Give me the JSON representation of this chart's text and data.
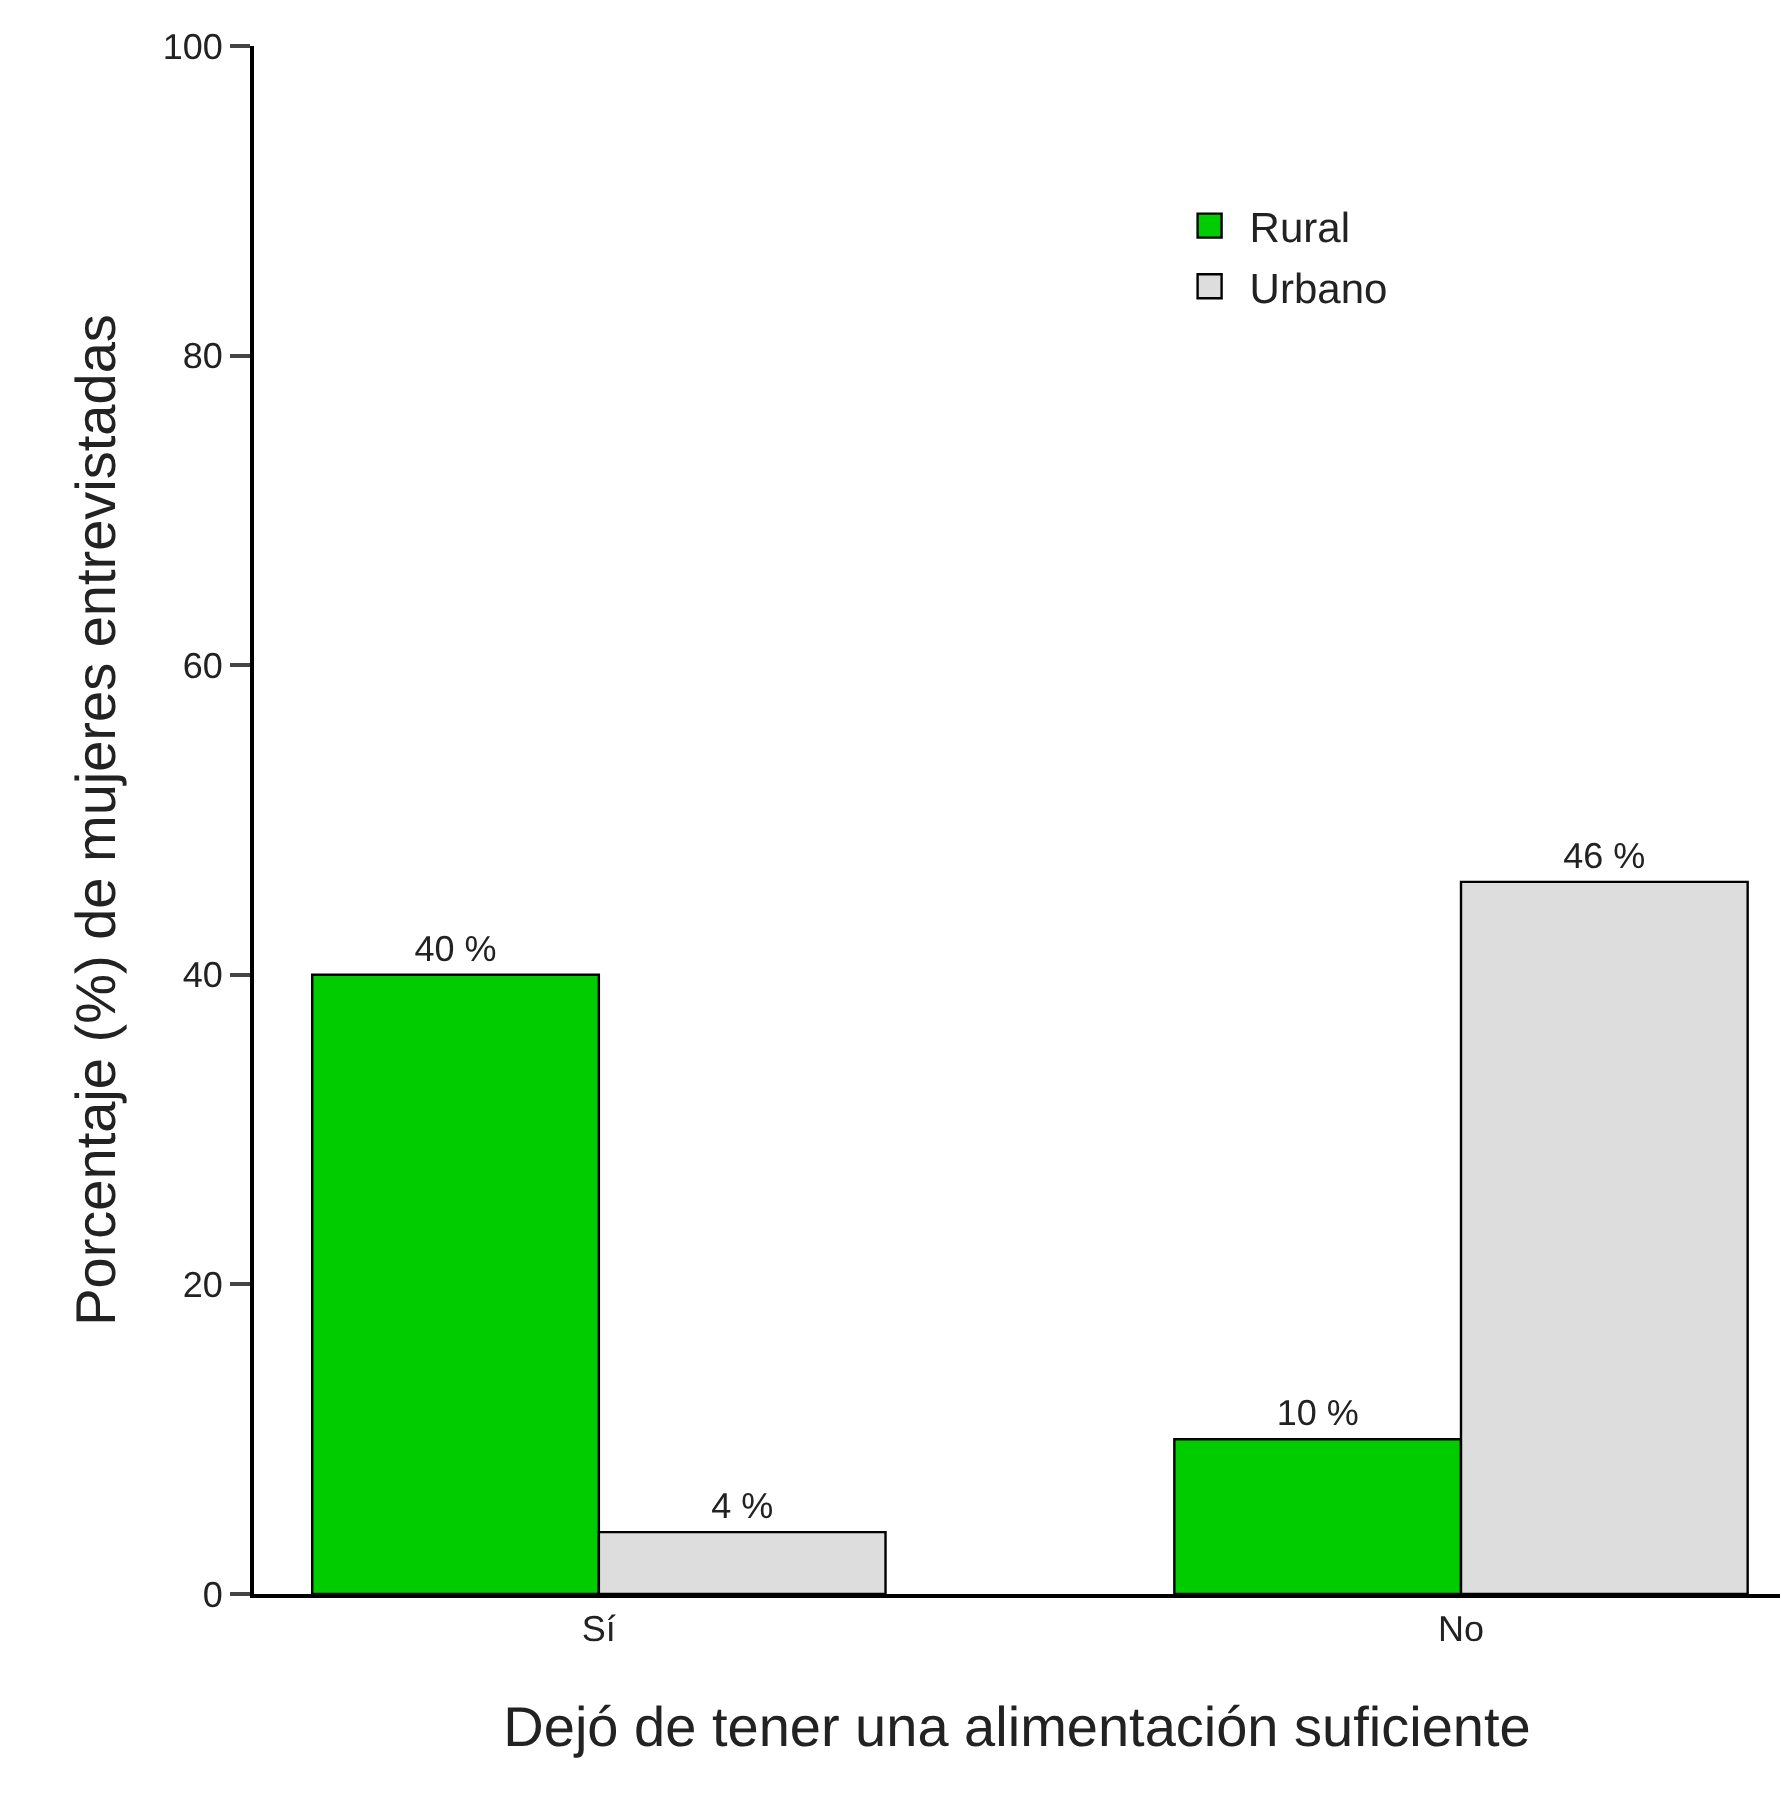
{
  "chart_data": {
    "type": "bar",
    "xlabel": "Dejó de tener una alimentación suficiente",
    "ylabel": "Porcentaje (%) de mujeres entrevistadas",
    "categories": [
      "Sí",
      "No"
    ],
    "series": [
      {
        "name": "Rural",
        "color": "#00cc00",
        "values": [
          40,
          10
        ],
        "value_labels": [
          "40 %",
          "10 %"
        ]
      },
      {
        "name": "Urbano",
        "color": "#dddddd",
        "values": [
          4,
          46
        ],
        "value_labels": [
          "4 %",
          "46 %"
        ]
      }
    ],
    "ylim": [
      0,
      100
    ],
    "yticks": [
      0,
      20,
      40,
      60,
      80,
      100
    ],
    "legend": "top right"
  }
}
